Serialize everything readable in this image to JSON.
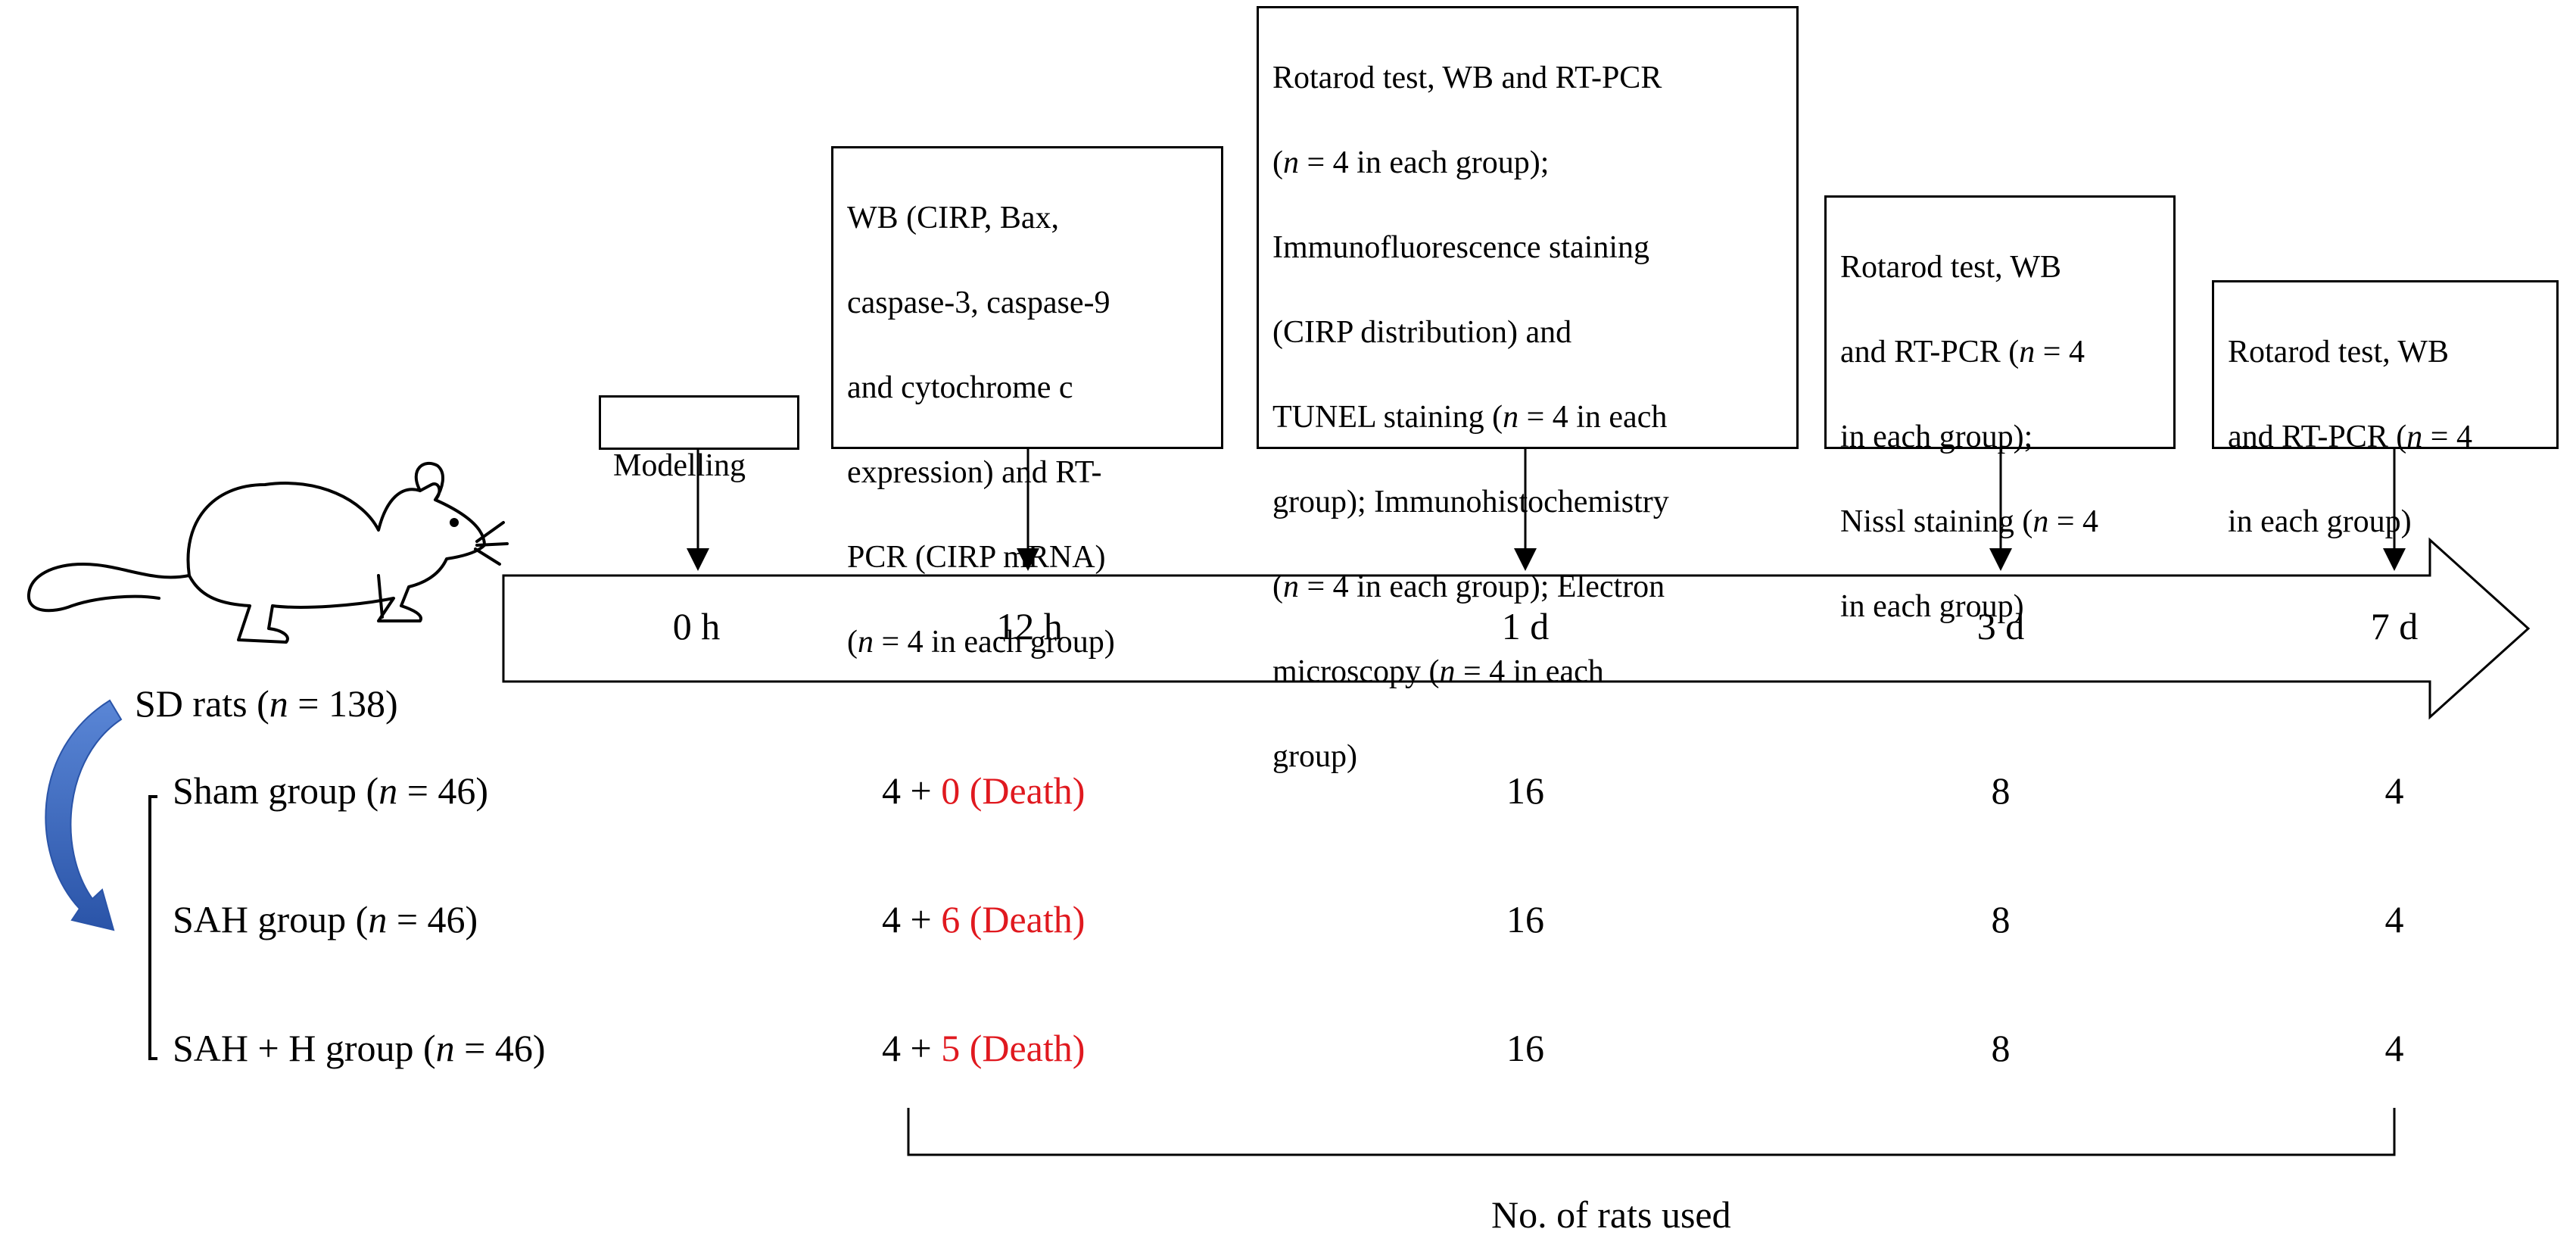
{
  "events": [
    {
      "id": "modelling",
      "text": "Modelling"
    },
    {
      "id": "12h",
      "lines": [
        "WB (CIRP, Bax,",
        "caspase-3, caspase-9",
        "and cytochrome c",
        "expression) and RT-",
        "PCR (CIRP mRNA)",
        "(n = 4 in each group)"
      ]
    },
    {
      "id": "1d",
      "lines": [
        "Rotarod test, WB and RT-PCR",
        "(n = 4 in each group);",
        "Immunofluorescence staining",
        "(CIRP distribution) and",
        "TUNEL staining (n = 4 in each",
        "group); Immunohistochemistry",
        "(n = 4 in each group); Electron",
        "microscopy (n = 4 in each",
        "group)"
      ]
    },
    {
      "id": "3d",
      "lines": [
        "Rotarod test, WB",
        "and RT-PCR (n = 4",
        "in each group);",
        "Nissl staining (n = 4",
        "in each group)"
      ]
    },
    {
      "id": "7d",
      "lines": [
        "Rotarod test, WB",
        "and RT-PCR (n = 4",
        "in each group)"
      ]
    }
  ],
  "timeline": {
    "ticks": [
      "0 h",
      "12 h",
      "1 d",
      "3 d",
      "7 d"
    ]
  },
  "rats": {
    "total_label": "SD rats (n = 138)",
    "icon": "rat-icon"
  },
  "groups": [
    {
      "label": "Sham group (n = 46)",
      "h12_base": "4 + ",
      "h12_death": "0 (Death)",
      "d1": "16",
      "d3": "8",
      "d7": "4"
    },
    {
      "label": "SAH group (n = 46)",
      "h12_base": "4 + ",
      "h12_death": "6 (Death)",
      "d1": "16",
      "d3": "8",
      "d7": "4"
    },
    {
      "label": "SAH + H group (n = 46)",
      "h12_base": "4 + ",
      "h12_death": "5 (Death)",
      "d1": "16",
      "d3": "8",
      "d7": "4"
    }
  ],
  "footer": "No. of rats used",
  "colors": {
    "death": "#e0191f",
    "curved_arrow": "#2f5fb0"
  }
}
